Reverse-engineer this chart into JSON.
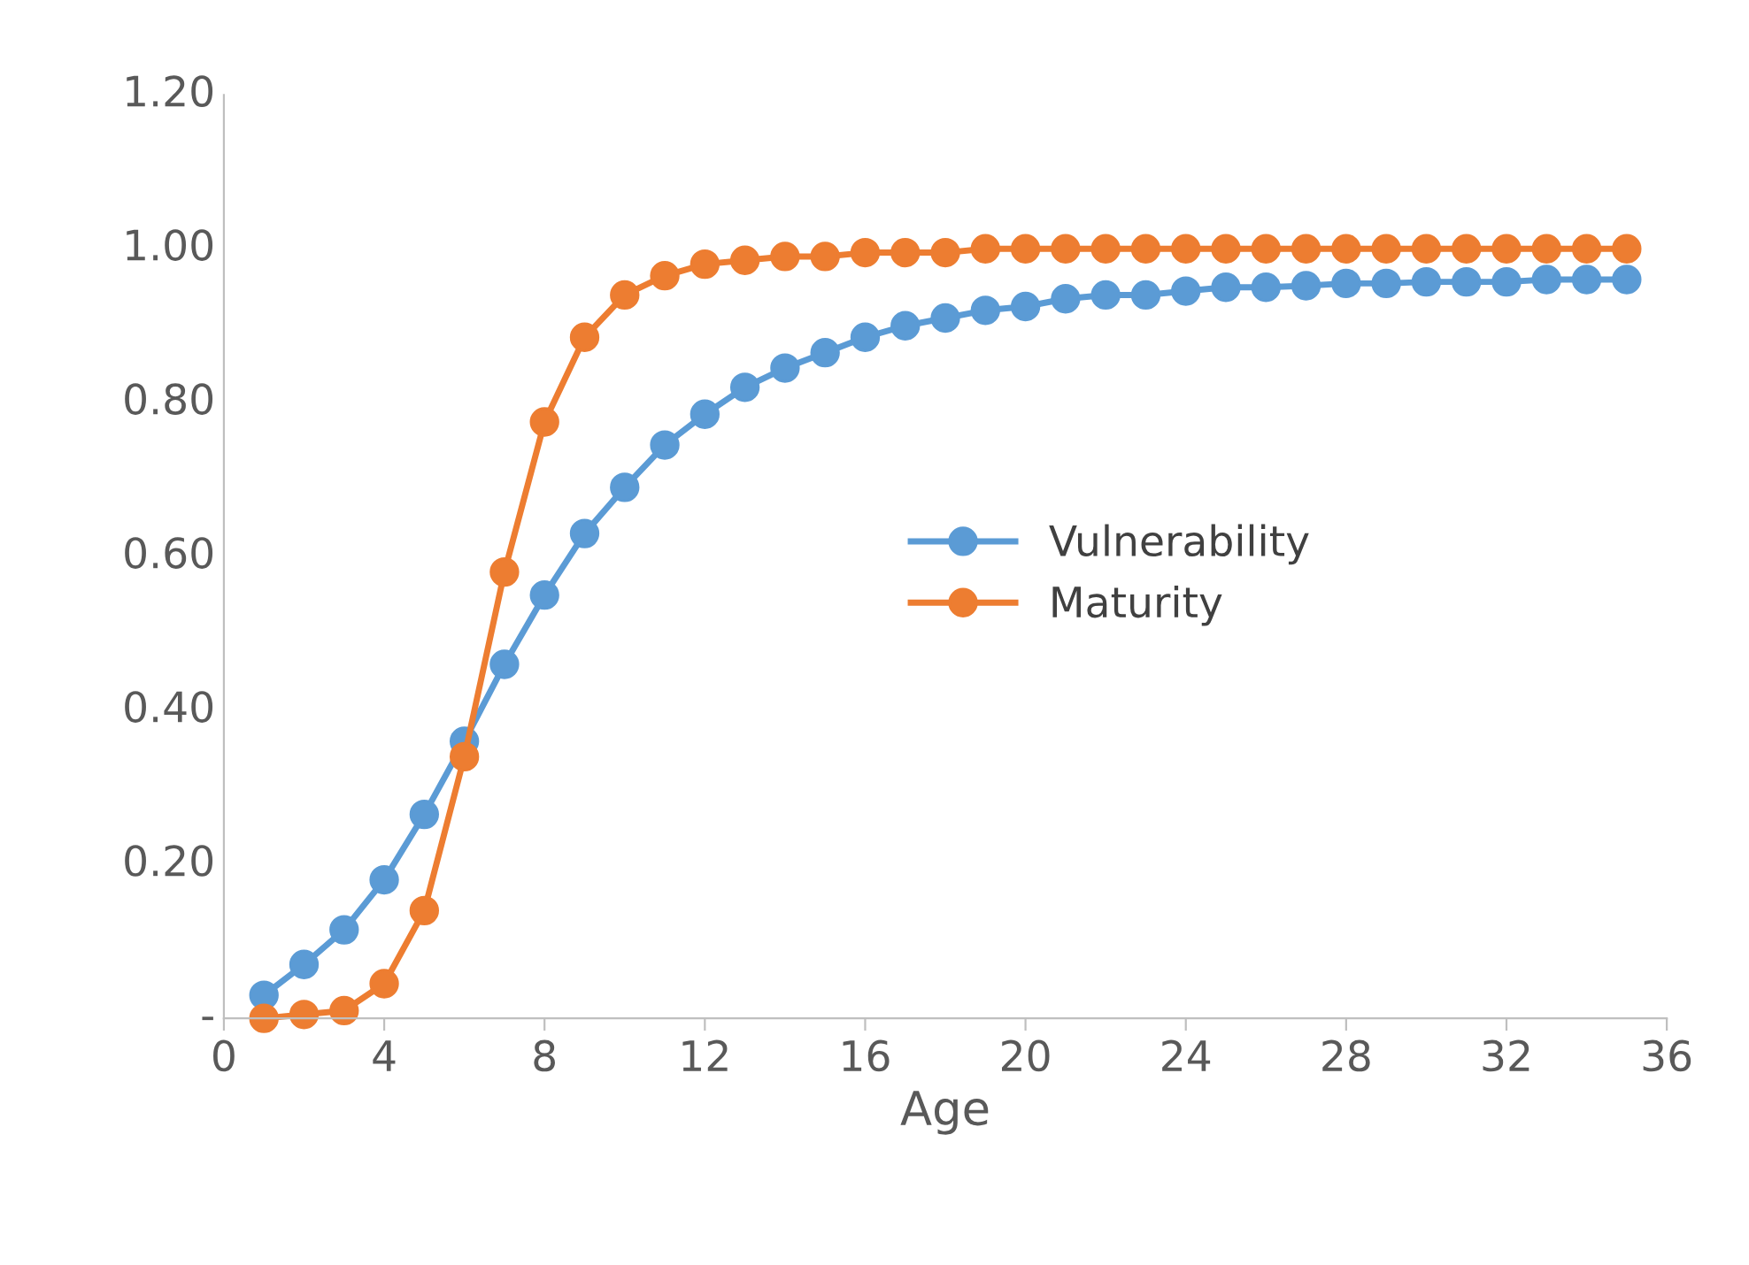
{
  "chart_data": {
    "type": "line",
    "xlabel": "Age",
    "x": [
      1,
      2,
      3,
      4,
      5,
      6,
      7,
      8,
      9,
      10,
      11,
      12,
      13,
      14,
      15,
      16,
      17,
      18,
      19,
      20,
      21,
      22,
      23,
      24,
      25,
      26,
      27,
      28,
      29,
      30,
      31,
      32,
      33,
      34,
      35
    ],
    "series": [
      {
        "name": "Vulnerability",
        "color": "#5b9bd5",
        "values": [
          0.03,
          0.07,
          0.115,
          0.18,
          0.265,
          0.36,
          0.46,
          0.55,
          0.63,
          0.69,
          0.745,
          0.785,
          0.82,
          0.845,
          0.865,
          0.885,
          0.9,
          0.91,
          0.92,
          0.925,
          0.935,
          0.94,
          0.94,
          0.945,
          0.95,
          0.95,
          0.952,
          0.955,
          0.955,
          0.957,
          0.957,
          0.957,
          0.96,
          0.96,
          0.96
        ]
      },
      {
        "name": "Maturity",
        "color": "#ed7d31",
        "values": [
          0,
          0.005,
          0.01,
          0.045,
          0.14,
          0.34,
          0.58,
          0.775,
          0.885,
          0.94,
          0.965,
          0.98,
          0.985,
          0.99,
          0.99,
          0.995,
          0.995,
          0.995,
          1.0,
          1.0,
          1.0,
          1.0,
          1.0,
          1.0,
          1.0,
          1.0,
          1.0,
          1.0,
          1.0,
          1.0,
          1.0,
          1.0,
          1.0,
          1.0,
          1.0
        ]
      }
    ],
    "xlim": [
      0,
      36
    ],
    "xticks": [
      0,
      4,
      8,
      12,
      16,
      20,
      24,
      28,
      32,
      36
    ],
    "ylim": [
      0,
      1.2
    ],
    "yticks": [
      {
        "value": 0,
        "label": "-"
      },
      {
        "value": 0.2,
        "label": "0.20"
      },
      {
        "value": 0.4,
        "label": "0.40"
      },
      {
        "value": 0.6,
        "label": "0.60"
      },
      {
        "value": 0.8,
        "label": "0.80"
      },
      {
        "value": 1.0,
        "label": "1.00"
      },
      {
        "value": 1.2,
        "label": "1.20"
      }
    ],
    "grid": false,
    "legend": "right",
    "marker": "circle",
    "line_style": "solid"
  }
}
